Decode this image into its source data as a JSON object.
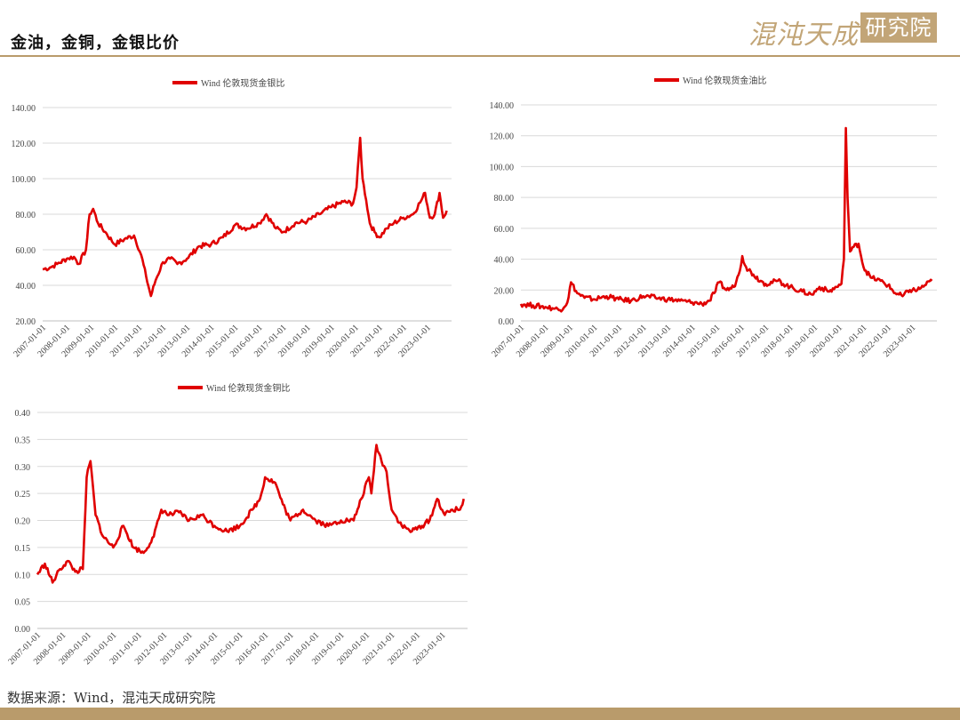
{
  "header": {
    "title": "金油，金铜，金银比价",
    "logo_script": "混沌天成",
    "logo_box": "研究院"
  },
  "footer": {
    "source": "数据来源：Wind，混沌天成研究院"
  },
  "colors": {
    "accent": "#b99b6b",
    "series": "#e00000",
    "grid": "#d9d9d9"
  },
  "chart_data": [
    {
      "id": "gold-silver",
      "type": "line",
      "legend": "Wind 伦敦现货金银比",
      "ylim": [
        20,
        140
      ],
      "yticks": [
        "20.00",
        "40.00",
        "60.00",
        "80.00",
        "100.00",
        "120.00",
        "140.00"
      ],
      "xticks": [
        "2007-01-01",
        "2008-01-01",
        "2009-01-01",
        "2010-01-01",
        "2011-01-01",
        "2012-01-01",
        "2013-01-01",
        "2014-01-01",
        "2015-01-01",
        "2016-01-01",
        "2017-01-01",
        "2018-01-01",
        "2019-01-01",
        "2020-01-01",
        "2021-01-01",
        "2022-01-01",
        "2023-01-01"
      ],
      "x": [
        2007.0,
        2007.3,
        2007.6,
        2008.0,
        2008.3,
        2008.5,
        2008.8,
        2008.95,
        2009.1,
        2009.3,
        2009.6,
        2010.0,
        2010.4,
        2010.8,
        2011.1,
        2011.3,
        2011.5,
        2011.7,
        2012.0,
        2012.3,
        2012.6,
        2013.0,
        2013.5,
        2014.0,
        2014.5,
        2015.0,
        2015.5,
        2016.0,
        2016.3,
        2016.7,
        2017.0,
        2017.5,
        2018.0,
        2018.5,
        2019.0,
        2019.5,
        2019.9,
        2020.05,
        2020.2,
        2020.3,
        2020.45,
        2020.6,
        2020.8,
        2021.0,
        2021.3,
        2021.6,
        2022.0,
        2022.4,
        2022.75,
        2022.9,
        2023.1,
        2023.3,
        2023.5,
        2023.65,
        2023.8
      ],
      "values": [
        49,
        50,
        52,
        55,
        56,
        52,
        60,
        80,
        83,
        75,
        70,
        63,
        66,
        68,
        57,
        45,
        34,
        43,
        53,
        55,
        52,
        55,
        62,
        63,
        67,
        74,
        72,
        75,
        80,
        72,
        70,
        75,
        76,
        80,
        84,
        87,
        86,
        95,
        123,
        100,
        88,
        75,
        70,
        67,
        72,
        75,
        78,
        80,
        88,
        92,
        78,
        80,
        92,
        78,
        82
      ]
    },
    {
      "id": "gold-oil",
      "type": "line",
      "legend": "Wind 伦敦现货金油比",
      "ylim": [
        0,
        140
      ],
      "yticks": [
        "0.00",
        "20.00",
        "40.00",
        "60.00",
        "80.00",
        "100.00",
        "120.00",
        "140.00"
      ],
      "xticks": [
        "2007-01-01",
        "2008-01-01",
        "2009-01-01",
        "2010-01-01",
        "2011-01-01",
        "2012-01-01",
        "2013-01-01",
        "2014-01-01",
        "2015-01-01",
        "2016-01-01",
        "2017-01-01",
        "2018-01-01",
        "2019-01-01",
        "2020-01-01",
        "2021-01-01",
        "2022-01-01",
        "2023-01-01"
      ],
      "x": [
        2007.0,
        2007.5,
        2008.0,
        2008.4,
        2008.6,
        2008.9,
        2009.05,
        2009.3,
        2009.6,
        2010.0,
        2010.5,
        2011.0,
        2011.5,
        2012.0,
        2012.5,
        2013.0,
        2013.5,
        2014.0,
        2014.4,
        2014.7,
        2014.9,
        2015.1,
        2015.4,
        2015.7,
        2015.9,
        2016.05,
        2016.2,
        2016.5,
        2016.8,
        2017.0,
        2017.5,
        2018.0,
        2018.5,
        2018.9,
        2019.2,
        2019.6,
        2019.9,
        2020.1,
        2020.2,
        2020.28,
        2020.35,
        2020.45,
        2020.6,
        2020.8,
        2021.0,
        2021.3,
        2021.7,
        2022.0,
        2022.3,
        2022.6,
        2022.9,
        2023.2,
        2023.5,
        2023.8
      ],
      "values": [
        11,
        10,
        9,
        8,
        7,
        12,
        25,
        18,
        15,
        14,
        16,
        14,
        13,
        16,
        15,
        14,
        13,
        12,
        11,
        13,
        18,
        25,
        20,
        22,
        30,
        42,
        35,
        30,
        26,
        24,
        26,
        22,
        19,
        17,
        22,
        19,
        22,
        24,
        40,
        125,
        80,
        45,
        48,
        50,
        35,
        28,
        26,
        23,
        18,
        16,
        20,
        20,
        23,
        26
      ]
    },
    {
      "id": "gold-copper",
      "type": "line",
      "legend": "Wind 伦敦现货金铜比",
      "ylim": [
        0,
        0.4
      ],
      "yticks": [
        "0.00",
        "0.05",
        "0.10",
        "0.15",
        "0.20",
        "0.25",
        "0.30",
        "0.35",
        "0.40"
      ],
      "xticks": [
        "2007-01-01",
        "2008-01-01",
        "2009-01-01",
        "2010-01-01",
        "2011-01-01",
        "2012-01-01",
        "2013-01-01",
        "2014-01-01",
        "2015-01-01",
        "2016-01-01",
        "2017-01-01",
        "2018-01-01",
        "2019-01-01",
        "2020-01-01",
        "2021-01-01",
        "2022-01-01",
        "2023-01-01"
      ],
      "x": [
        2007.0,
        2007.3,
        2007.6,
        2007.9,
        2008.2,
        2008.5,
        2008.8,
        2008.95,
        2009.1,
        2009.3,
        2009.6,
        2010.0,
        2010.4,
        2010.8,
        2011.2,
        2011.6,
        2011.9,
        2012.2,
        2012.6,
        2013.0,
        2013.5,
        2014.0,
        2014.5,
        2015.0,
        2015.5,
        2015.8,
        2016.0,
        2016.4,
        2016.7,
        2017.0,
        2017.5,
        2018.0,
        2018.5,
        2019.0,
        2019.5,
        2019.8,
        2020.1,
        2020.2,
        2020.4,
        2020.6,
        2020.8,
        2021.0,
        2021.4,
        2021.8,
        2022.2,
        2022.5,
        2022.8,
        2023.1,
        2023.4,
        2023.7,
        2023.85
      ],
      "values": [
        0.1,
        0.12,
        0.085,
        0.11,
        0.125,
        0.105,
        0.11,
        0.28,
        0.31,
        0.21,
        0.17,
        0.15,
        0.19,
        0.15,
        0.14,
        0.17,
        0.22,
        0.21,
        0.215,
        0.2,
        0.21,
        0.19,
        0.18,
        0.19,
        0.22,
        0.24,
        0.28,
        0.27,
        0.23,
        0.2,
        0.22,
        0.2,
        0.19,
        0.2,
        0.2,
        0.24,
        0.28,
        0.25,
        0.34,
        0.31,
        0.29,
        0.22,
        0.19,
        0.18,
        0.19,
        0.2,
        0.24,
        0.21,
        0.22,
        0.22,
        0.24
      ]
    }
  ]
}
